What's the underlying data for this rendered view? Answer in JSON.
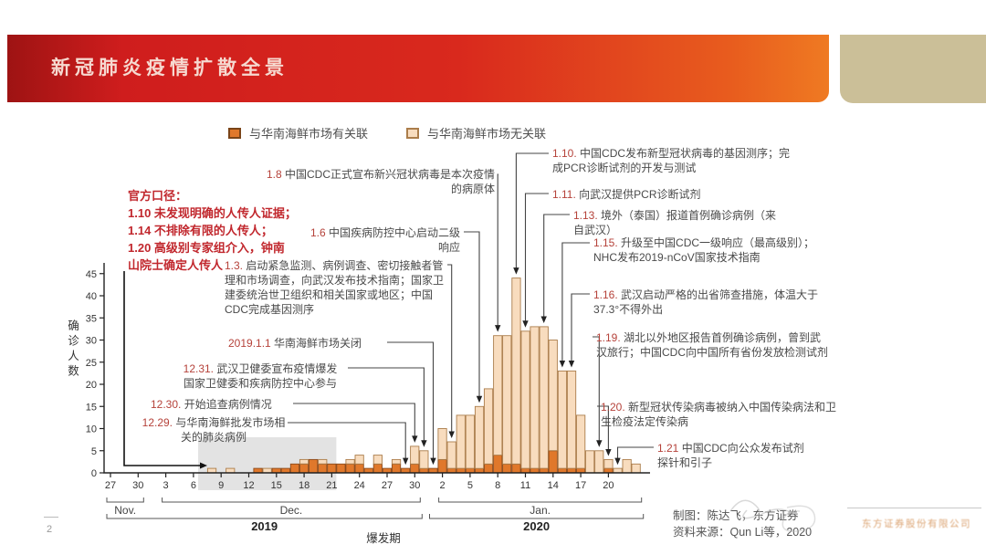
{
  "header": {
    "title": "新冠肺炎疫情扩散全景"
  },
  "legend": [
    {
      "label": "与华南海鲜市场有关联",
      "color": "#e0782b",
      "border": "#7a4418"
    },
    {
      "label": "与华南海鲜市场无关联",
      "color": "#f8dcbe",
      "border": "#ab7d4b"
    }
  ],
  "official_stance": {
    "heading": "官方口径：",
    "lines": [
      "1.10 未发现明确的人传人证据；",
      "1.14 不排除有限的人传人；",
      "1.20 高级别专家组介入，钟南",
      "山院士确定人传人"
    ]
  },
  "annotations": {
    "left": [
      {
        "id": "1.8",
        "date_label": "1.8",
        "text": "中国CDC正式宣布新兴冠状病毒是本次疫情的病原体",
        "target": "1.8"
      },
      {
        "id": "1.6",
        "date_label": "1.6",
        "text": "中国疾病防控中心启动二级响应",
        "target": "1.6"
      },
      {
        "id": "1.3",
        "date_label": "1.3.",
        "text": "启动紧急监测、病例调查、密切接触者管理和市场调查，向武汉发布技术指南；国家卫建委统治世卫组织和相关国家或地区；中国CDC完成基因测序",
        "target": "1.3"
      },
      {
        "id": "1.1",
        "date_label": "2019.1.1",
        "text": "华南海鲜市场关闭",
        "target": "1.1"
      },
      {
        "id": "12.31",
        "date_label": "12.31.",
        "text": "武汉卫健委宣布疫情爆发 国家卫健委和疾病防控中心参与",
        "target": "12.31"
      },
      {
        "id": "12.30",
        "date_label": "12.30.",
        "text": "开始追查病例情况",
        "target": "12.30"
      },
      {
        "id": "12.29",
        "date_label": "12.29.",
        "text": "与华南海鲜批发市场相关的肺炎病例",
        "target": "12.29"
      }
    ],
    "right": [
      {
        "id": "1.10",
        "date_label": "1.10.",
        "text": "中国CDC发布新型冠状病毒的基因测序；完成PCR诊断试剂的开发与测试",
        "target": "1.10"
      },
      {
        "id": "1.11",
        "date_label": "1.11.",
        "text": "向武汉提供PCR诊断试剂",
        "target": "1.11"
      },
      {
        "id": "1.13",
        "date_label": "1.13.",
        "text": "境外（泰国）报道首例确诊病例（来自武汉）",
        "target": "1.13"
      },
      {
        "id": "1.15",
        "date_label": "1.15.",
        "text": "升级至中国CDC一级响应（最高级别）；NHC发布2019-nCoV国家技术指南",
        "target": "1.15"
      },
      {
        "id": "1.16",
        "date_label": "1.16.",
        "text": "武汉启动严格的出省筛查措施，体温大于37.3°不得外出",
        "target": "1.16"
      },
      {
        "id": "1.19",
        "date_label": "1.19.",
        "text": "湖北以外地区报告首例确诊病例，曾到武汉旅行；中国CDC向中国所有省份发放检测试剂",
        "target": "1.19"
      },
      {
        "id": "1.20",
        "date_label": "1.20.",
        "text": "新型冠状传染病毒被纳入中国传染病法和卫生检疫法定传染病",
        "target": "1.20"
      },
      {
        "id": "1.21",
        "date_label": "1.21",
        "text": "中国CDC向公众发布试剂探针和引子",
        "target": "1.21"
      }
    ]
  },
  "chart_data": {
    "type": "bar",
    "stacked": true,
    "title": "新冠肺炎疫情扩散全景",
    "ylabel": "确诊人数",
    "xlabel": "爆发期",
    "ylim": [
      0,
      45
    ],
    "ytick_step": 5,
    "yticks": [
      0,
      5,
      10,
      15,
      20,
      25,
      30,
      35,
      40,
      45
    ],
    "x_start": "11.27",
    "x_end": "1.23",
    "xticks": [
      "11.27",
      "11.30",
      "12.3",
      "12.6",
      "12.9",
      "12.12",
      "12.15",
      "12.18",
      "12.21",
      "12.24",
      "12.27",
      "12.30",
      "1.2",
      "1.5",
      "1.8",
      "1.11",
      "1.14",
      "1.17",
      "1.20"
    ],
    "highlight_region": {
      "from": "12.7",
      "to": "12.21"
    },
    "series": [
      {
        "name": "与华南海鲜市场有关联",
        "color": "#e0782b",
        "stroke": "#8a4a1c"
      },
      {
        "name": "与华南海鲜市场无关联",
        "color": "#f8dcbe",
        "stroke": "#ab7d4b"
      }
    ],
    "days": [
      [
        "12.8",
        0,
        1
      ],
      [
        "12.9",
        0,
        0
      ],
      [
        "12.10",
        0,
        1
      ],
      [
        "12.11",
        0,
        0
      ],
      [
        "12.12",
        0,
        0
      ],
      [
        "12.13",
        1,
        0
      ],
      [
        "12.14",
        0,
        1
      ],
      [
        "12.15",
        1,
        0
      ],
      [
        "12.16",
        1,
        0
      ],
      [
        "12.17",
        2,
        0
      ],
      [
        "12.18",
        2,
        1
      ],
      [
        "12.19",
        3,
        0
      ],
      [
        "12.20",
        2,
        1
      ],
      [
        "12.21",
        2,
        0
      ],
      [
        "12.22",
        2,
        0
      ],
      [
        "12.23",
        2,
        1
      ],
      [
        "12.24",
        2,
        2
      ],
      [
        "12.25",
        1,
        0
      ],
      [
        "12.26",
        2,
        2
      ],
      [
        "12.27",
        1,
        0
      ],
      [
        "12.28",
        2,
        1
      ],
      [
        "12.29",
        1,
        0
      ],
      [
        "12.30",
        2,
        4
      ],
      [
        "12.31",
        1,
        4
      ],
      [
        "1.1",
        1,
        0
      ],
      [
        "1.2",
        3,
        7
      ],
      [
        "1.3",
        1,
        6
      ],
      [
        "1.4",
        1,
        12
      ],
      [
        "1.5",
        1,
        12
      ],
      [
        "1.6",
        1,
        14
      ],
      [
        "1.7",
        2,
        17
      ],
      [
        "1.8",
        4,
        27
      ],
      [
        "1.9",
        2,
        29
      ],
      [
        "1.10",
        2,
        42
      ],
      [
        "1.11",
        1,
        31
      ],
      [
        "1.12",
        1,
        32
      ],
      [
        "1.13",
        1,
        32
      ],
      [
        "1.14",
        5,
        25
      ],
      [
        "1.15",
        1,
        22
      ],
      [
        "1.16",
        1,
        22
      ],
      [
        "1.17",
        1,
        12
      ],
      [
        "1.18",
        0,
        5
      ],
      [
        "1.19",
        0,
        5
      ],
      [
        "1.20",
        1,
        2
      ],
      [
        "1.21",
        0,
        1
      ],
      [
        "1.22",
        0,
        3
      ],
      [
        "1.23",
        0,
        2
      ]
    ]
  },
  "timeline": {
    "months": [
      {
        "label": "Nov.",
        "start": "11.27",
        "end": "11.30"
      },
      {
        "label": "Dec.",
        "start": "12.3",
        "end": "12.30"
      },
      {
        "label": "Jan.",
        "start": "1.2",
        "end": "1.23"
      }
    ],
    "years": [
      {
        "label": "2019",
        "start": "11.27",
        "end": "12.30"
      },
      {
        "label": "2020",
        "start": "1.1",
        "end": "1.23"
      }
    ],
    "phase_label": "爆发期"
  },
  "footer": {
    "page_number": "2",
    "credit_line1": "制图：陈达飞，东方证券",
    "credit_line2": "资料来源：Qun Li等，2020",
    "company": "东方证券股份有限公司"
  }
}
